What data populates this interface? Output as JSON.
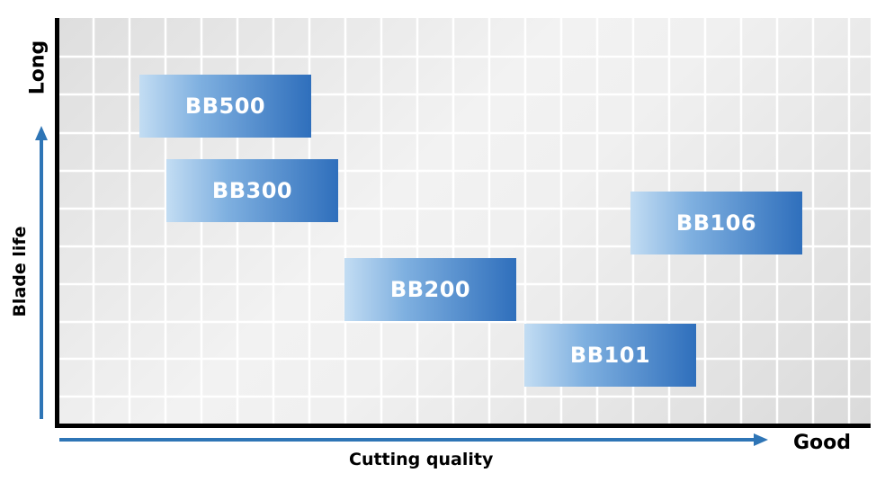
{
  "axes": {
    "x_title": "Cutting quality",
    "x_end_label": "Good",
    "y_title": "Blade life",
    "y_end_label": "Long"
  },
  "colors": {
    "box_light": "#c3ddf3",
    "box_dark": "#2f6fbc",
    "arrow": "#2e75b6",
    "grid_line": "#ffffff",
    "axis": "#000000"
  },
  "products": [
    {
      "label": "BB500",
      "quality": 1,
      "life": 5
    },
    {
      "label": "BB300",
      "quality": 1.5,
      "life": 4
    },
    {
      "label": "BB106",
      "quality": 4,
      "life": 3.5
    },
    {
      "label": "BB200",
      "quality": 2.5,
      "life": 2.5
    },
    {
      "label": "BB101",
      "quality": 3.5,
      "life": 1.5
    }
  ]
}
